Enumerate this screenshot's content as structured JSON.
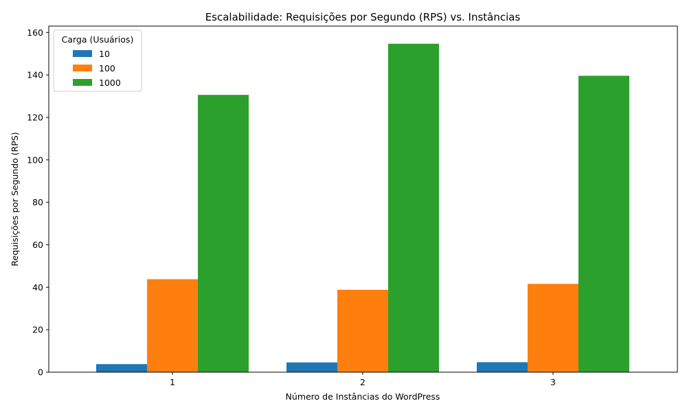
{
  "chart_data": {
    "type": "bar",
    "title": "Escalabilidade: Requisições por Segundo (RPS) vs. Instâncias",
    "xlabel": "Número de Instâncias do WordPress",
    "ylabel": "Requisições por Segundo (RPS)",
    "categories": [
      "1",
      "2",
      "3"
    ],
    "ylim": [
      0,
      163
    ],
    "yticks": [
      0,
      20,
      40,
      60,
      80,
      100,
      120,
      140,
      160
    ],
    "legend_title": "Carga (Usuários)",
    "legend_position": "top-left",
    "grid": false,
    "series": [
      {
        "name": "10",
        "color": "#1f77b4",
        "values": [
          3.8,
          4.6,
          4.7
        ]
      },
      {
        "name": "100",
        "color": "#ff7f0e",
        "values": [
          43.8,
          38.8,
          41.6
        ]
      },
      {
        "name": "1000",
        "color": "#2ca02c",
        "values": [
          130.6,
          154.7,
          139.6
        ]
      }
    ]
  }
}
